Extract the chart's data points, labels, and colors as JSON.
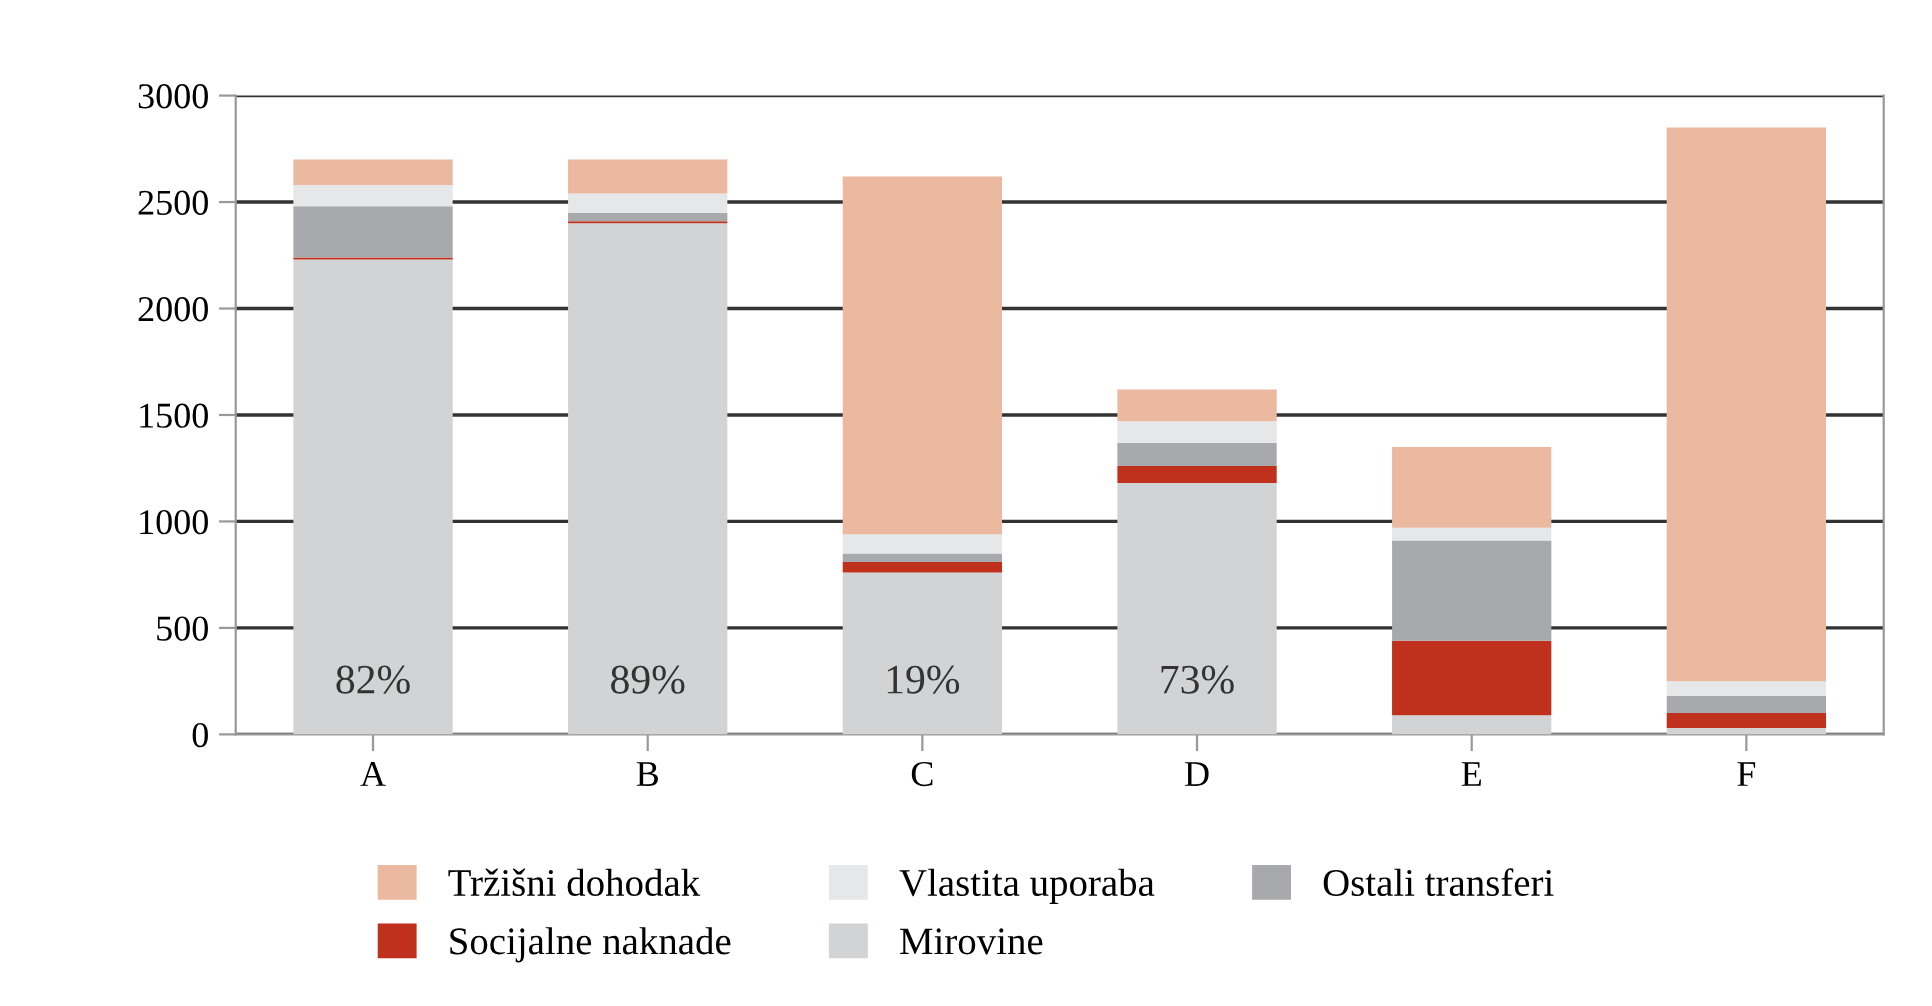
{
  "chart_data": {
    "type": "bar",
    "stacked": true,
    "categories": [
      "A",
      "B",
      "C",
      "D",
      "E",
      "F"
    ],
    "series": [
      {
        "name": "Mirovine",
        "color": "#d1d3d4",
        "values": [
          2230,
          2400,
          760,
          1180,
          90,
          30
        ]
      },
      {
        "name": "Socijalne naknade",
        "color": "#c0311d",
        "values": [
          10,
          10,
          50,
          80,
          350,
          70
        ]
      },
      {
        "name": "Ostali transferi",
        "color": "#a7a9ac",
        "values": [
          240,
          40,
          40,
          110,
          470,
          80
        ]
      },
      {
        "name": "Vlastita uporaba",
        "color": "#e6e7e8",
        "values": [
          100,
          90,
          90,
          100,
          60,
          70
        ]
      },
      {
        "name": "Tržišni dohodak",
        "color": "#ebb8a0",
        "values": [
          120,
          160,
          1680,
          150,
          380,
          2600
        ]
      }
    ],
    "ylim": [
      0,
      3000
    ],
    "yticks": [
      0,
      500,
      1000,
      1500,
      2000,
      2500,
      3000
    ],
    "grid": "y",
    "legend": "bottom",
    "annotations": [
      "82%",
      "89%",
      "19%",
      "73%"
    ]
  }
}
